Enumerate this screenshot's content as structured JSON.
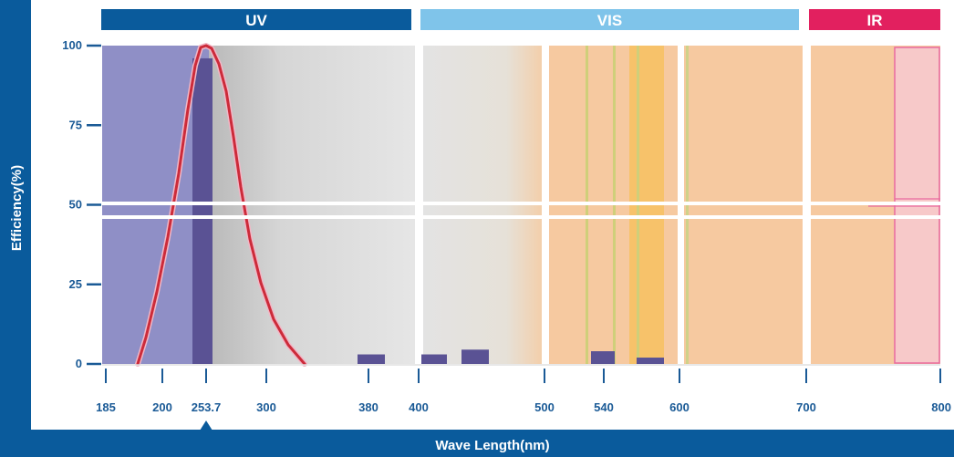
{
  "chart_data": {
    "type": "area",
    "title": "",
    "xlabel": "Wave Length(nm)",
    "ylabel": "Efficiency(%)",
    "x_ticks": [
      "185",
      "200",
      "253.7",
      "300",
      "380",
      "400",
      "500",
      "540",
      "600",
      "700",
      "800"
    ],
    "y_ticks": [
      "0",
      "25",
      "50",
      "75",
      "100"
    ],
    "ylim": [
      0,
      100
    ],
    "highlighted_tick": "253.7",
    "bands": [
      {
        "label": "UV",
        "from": "185",
        "to": "400",
        "color": "#0a5b9c"
      },
      {
        "label": "VIS",
        "from": "400",
        "to": "700",
        "color": "#7fc4ea"
      },
      {
        "label": "IR",
        "from": "700",
        "to": "800",
        "color": "#e2205f"
      }
    ],
    "curve": {
      "peak_at": "253.7",
      "points": [
        [
          "200",
          0
        ],
        [
          "200",
          25
        ],
        [
          "253.7",
          100
        ],
        [
          "300",
          25
        ],
        [
          "380",
          0
        ]
      ],
      "color": "#cc2b3a"
    },
    "bars": [
      {
        "at": "253.7",
        "value": 96
      },
      {
        "at": "380",
        "value": 3
      },
      {
        "at": "400",
        "value": 3
      },
      {
        "at": "400",
        "value": 4.5
      },
      {
        "at": "540",
        "value": 4
      },
      {
        "at": "540",
        "value": 2
      }
    ],
    "colors": {
      "uv_fill": "#8f8fc6",
      "bar": "#5a5294",
      "axis": "#0a5b9c",
      "tick_text": "#1a5a96",
      "peach": "#f6c9a0",
      "ir_pink": "#f7c9c9",
      "grey": "#e2e2e2"
    }
  }
}
